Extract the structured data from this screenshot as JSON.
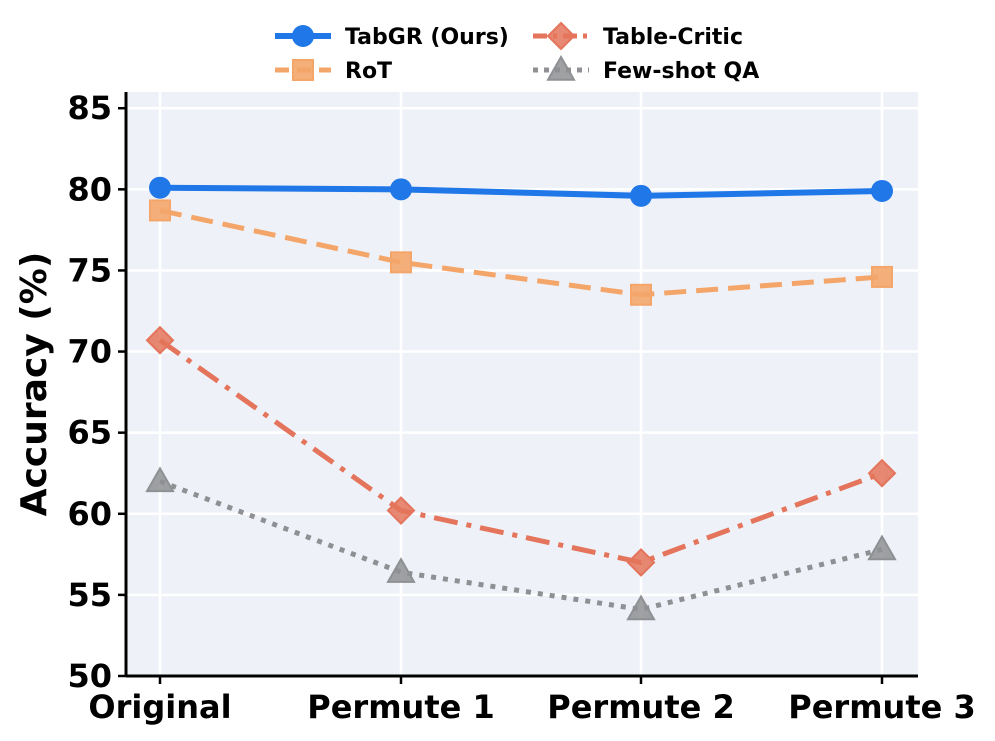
{
  "chart_data": {
    "type": "line",
    "categories": [
      "Original",
      "Permute 1",
      "Permute 2",
      "Permute 3"
    ],
    "ylabel": "Accuracy (%)",
    "xlabel": "",
    "ylim": [
      50,
      86
    ],
    "yticks": [
      50,
      55,
      60,
      65,
      70,
      75,
      80,
      85
    ],
    "grid": true,
    "legend_position": "top-center",
    "background": "#eef2f8",
    "series": [
      {
        "name": "TabGR (Ours)",
        "values": [
          80.1,
          80.0,
          79.6,
          79.9
        ],
        "color": "#1f77e8",
        "marker": "circle",
        "dash": "solid"
      },
      {
        "name": "RoT",
        "values": [
          78.7,
          75.5,
          73.5,
          74.6
        ],
        "color": "#f4a66a",
        "marker": "square",
        "dash": "dashed"
      },
      {
        "name": "Table-Critic",
        "values": [
          70.7,
          60.2,
          57.0,
          62.5
        ],
        "color": "#e4745b",
        "marker": "diamond",
        "dash": "dashdot"
      },
      {
        "name": "Few-shot QA",
        "values": [
          62.0,
          56.4,
          54.1,
          57.8
        ],
        "color": "#8e9093",
        "marker": "triangle",
        "dash": "dotted"
      }
    ]
  }
}
